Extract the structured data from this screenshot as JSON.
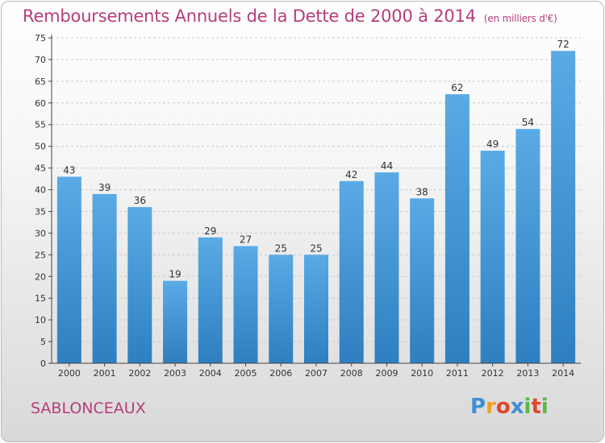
{
  "header": {
    "title": "Remboursements Annuels de la Dette de 2000 à 2014",
    "subtitle": "(en milliers d'€)"
  },
  "footer": {
    "commune": "SABLONCEAUX",
    "logo_letters": [
      "P",
      "r",
      "o",
      "x",
      "i",
      "t",
      "i"
    ],
    "logo_colors": [
      "#3d8fd6",
      "#f0a11d",
      "#e2462d",
      "#3d8fd6",
      "#5cb646",
      "#e2462d",
      "#5cb646"
    ]
  },
  "colors": {
    "title": "#b73c7b",
    "bar_light": "#5aaae6",
    "bar_dark": "#2e7fc0",
    "grid": "#c9c9c9",
    "axis": "#444444",
    "text": "#333333"
  },
  "chart_data": {
    "type": "bar",
    "title": "Remboursements Annuels de la Dette de 2000 à 2014",
    "categories": [
      "2000",
      "2001",
      "2002",
      "2003",
      "2004",
      "2005",
      "2006",
      "2007",
      "2008",
      "2009",
      "2010",
      "2011",
      "2012",
      "2013",
      "2014"
    ],
    "values": [
      43,
      39,
      36,
      19,
      29,
      27,
      25,
      25,
      42,
      44,
      38,
      62,
      49,
      54,
      72
    ],
    "ylim": [
      0,
      75
    ],
    "yticks": [
      0,
      5,
      10,
      15,
      20,
      25,
      30,
      35,
      40,
      45,
      50,
      55,
      60,
      65,
      70,
      75
    ],
    "xlabel": "",
    "ylabel": "",
    "grid": true,
    "legend": "none"
  }
}
